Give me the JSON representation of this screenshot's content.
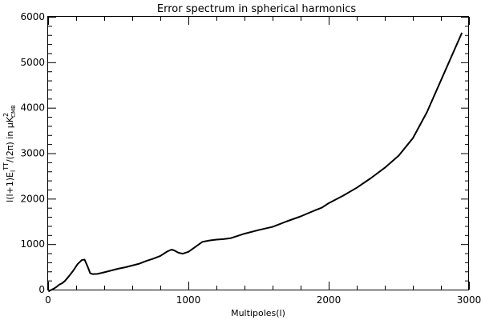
{
  "chart_data": {
    "type": "line",
    "title": "Error spectrum in spherical harmonics",
    "xlabel": "Multipoles(l)",
    "ylabel": {
      "prefix": "l(l+1)E",
      "sub": "l",
      "sup": "TT",
      "mid": "/(2π) in μK",
      "unit_sup": "2",
      "unit_sub": "CMB"
    },
    "xlim": [
      0,
      3000
    ],
    "ylim": [
      0,
      6000
    ],
    "x_ticks": [
      "0",
      "1000",
      "2000",
      "3000"
    ],
    "y_ticks": [
      "0",
      "1000",
      "2000",
      "3000",
      "4000",
      "5000",
      "6000"
    ],
    "grid": false,
    "series": [
      {
        "x": [
          2,
          20,
          40,
          60,
          80,
          100,
          120,
          150,
          180,
          210,
          240,
          260,
          280,
          300,
          320,
          350,
          400,
          450,
          500,
          550,
          600,
          650,
          700,
          750,
          800,
          850,
          880,
          900,
          930,
          960,
          1000,
          1050,
          1100,
          1150,
          1200,
          1250,
          1300,
          1350,
          1400,
          1500,
          1600,
          1650,
          1700,
          1800,
          1900,
          1950,
          2000,
          2100,
          2200,
          2300,
          2400,
          2500,
          2600,
          2700,
          2800,
          2900,
          2950
        ],
        "y": [
          -40,
          -10,
          20,
          60,
          110,
          140,
          190,
          300,
          420,
          560,
          650,
          660,
          520,
          360,
          340,
          345,
          380,
          420,
          460,
          490,
          530,
          570,
          630,
          680,
          740,
          840,
          880,
          860,
          810,
          790,
          830,
          940,
          1050,
          1080,
          1100,
          1110,
          1130,
          1180,
          1230,
          1310,
          1380,
          1440,
          1500,
          1610,
          1740,
          1800,
          1900,
          2060,
          2240,
          2450,
          2680,
          2950,
          3330,
          3900,
          4600,
          5300,
          5650
        ]
      }
    ]
  }
}
